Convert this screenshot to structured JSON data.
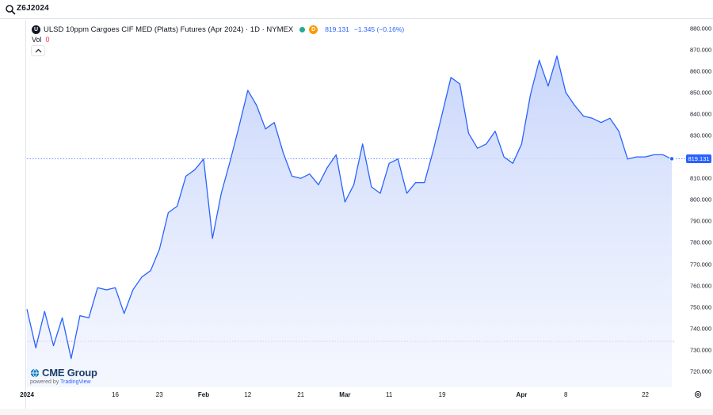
{
  "search": {
    "symbol": "Z6J2024"
  },
  "legend": {
    "exchange_icon_letter": "U",
    "title": "ULSD 10ppm Cargoes CIF MED (Platts) Futures (Apr 2024) · 1D · NYMEX",
    "delay_badge": "D",
    "last": "819.131",
    "change": "−1.345 (−0.16%)"
  },
  "volume": {
    "label": "Vol",
    "value": "0"
  },
  "watermark": {
    "brand": "CME Group",
    "powered_prefix": "powered by",
    "powered_brand": "TradingView"
  },
  "icons": {
    "search": "search-icon",
    "settings": "gear-icon",
    "collapse": "chevron-up-icon",
    "logo": "cme-globe-icon"
  },
  "colors": {
    "line": "#2962ff",
    "area_top": "#c6d4fb",
    "status": "#22ab94",
    "delay": "#ff9800",
    "reference_line": "#f23645"
  },
  "chart_data": {
    "type": "area",
    "title": "ULSD 10ppm Cargoes CIF MED (Platts) Futures (Apr 2024) · 1D · NYMEX",
    "ylim": [
      715,
      882
    ],
    "yticks": [
      720,
      730,
      740,
      750,
      760,
      770,
      780,
      790,
      800,
      810,
      820,
      830,
      840,
      850,
      860,
      870,
      880
    ],
    "ytick_labels": [
      "720.000",
      "730.000",
      "740.000",
      "750.000",
      "760.000",
      "770.000",
      "780.000",
      "790.000",
      "800.000",
      "810.000",
      "820.000",
      "830.000",
      "840.000",
      "850.000",
      "860.000",
      "870.000",
      "880.000"
    ],
    "xtick_labels": [
      {
        "label": "2024",
        "index": 0,
        "bold": true
      },
      {
        "label": "16",
        "index": 10,
        "bold": false
      },
      {
        "label": "23",
        "index": 15,
        "bold": false
      },
      {
        "label": "Feb",
        "index": 20,
        "bold": true
      },
      {
        "label": "12",
        "index": 25,
        "bold": false
      },
      {
        "label": "21",
        "index": 31,
        "bold": false
      },
      {
        "label": "Mar",
        "index": 36,
        "bold": true
      },
      {
        "label": "11",
        "index": 41,
        "bold": false
      },
      {
        "label": "19",
        "index": 47,
        "bold": false
      },
      {
        "label": "Apr",
        "index": 56,
        "bold": true
      },
      {
        "label": "8",
        "index": 61,
        "bold": false
      },
      {
        "label": "22",
        "index": 70,
        "bold": false
      }
    ],
    "values": [
      749,
      731,
      748,
      732,
      745,
      726,
      746,
      745,
      759,
      758,
      759,
      747,
      758,
      764,
      767,
      777,
      794,
      797,
      811,
      814,
      819,
      782,
      803,
      818,
      834,
      851,
      844,
      833,
      836,
      822,
      811,
      810,
      812,
      807,
      815,
      821,
      799,
      807,
      826,
      806,
      803,
      817,
      819,
      803,
      808,
      808,
      823,
      840,
      857,
      854,
      831,
      824,
      826,
      832,
      820,
      817,
      826,
      849,
      865,
      853,
      867,
      850,
      844,
      839,
      838,
      836,
      838,
      832,
      819,
      820,
      820,
      821,
      821,
      819
    ],
    "last_value": 819.131,
    "last_value_label": "819.131",
    "reference_level": 734,
    "grid": false
  }
}
